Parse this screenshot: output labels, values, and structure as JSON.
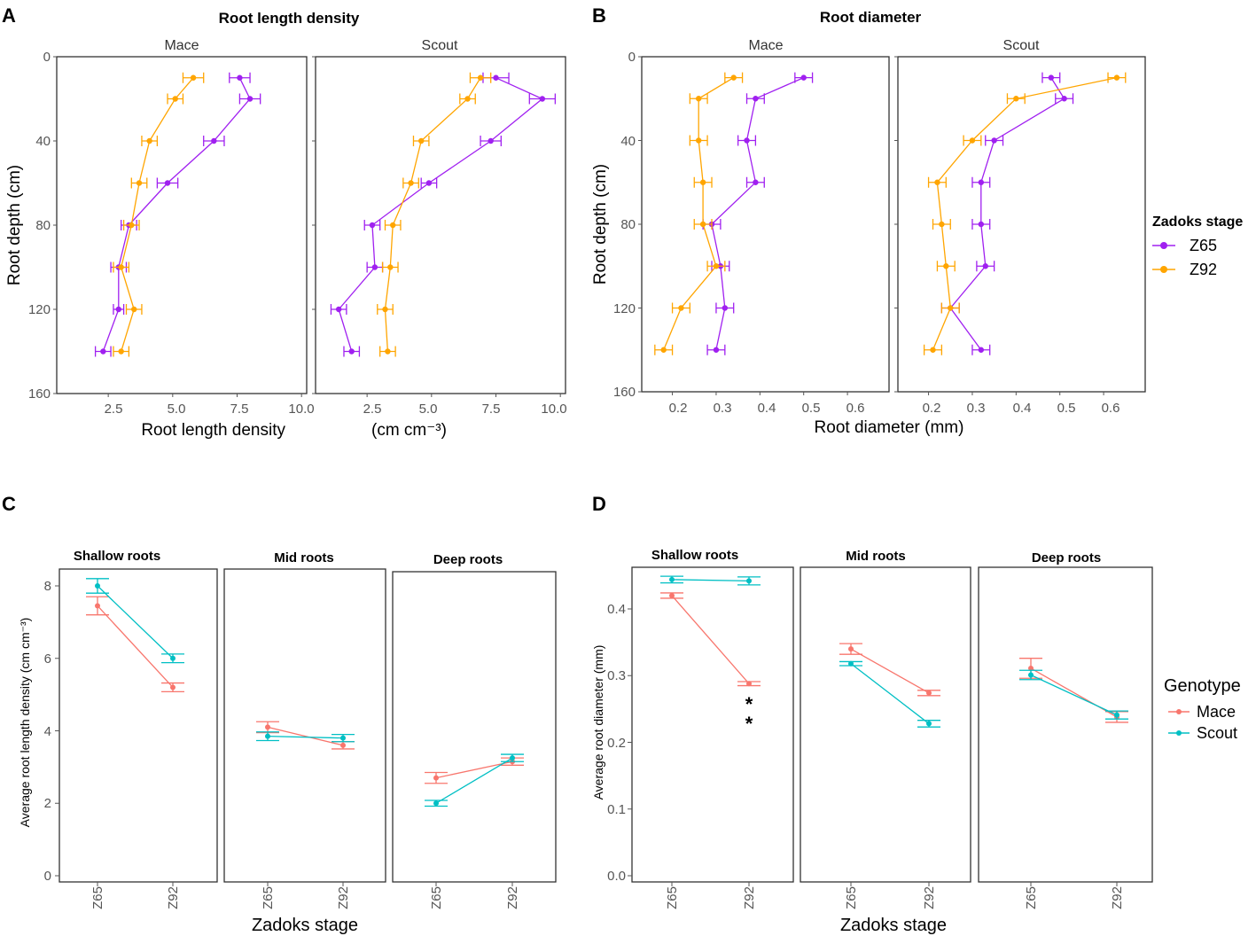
{
  "colors": {
    "z65": "#a020f0",
    "z92": "#ffa500",
    "mace": "#f8766d",
    "scout": "#00bfc4",
    "frame": "#333333"
  },
  "chart_data": [
    {
      "id": "A",
      "panel_label": "A",
      "type": "line",
      "title": "Root length density",
      "xlabel": "Root length density",
      "xlabel_unit": "(cm cm⁻³)",
      "ylabel": "Root depth (cm)",
      "xlim": [
        0.5,
        10.2
      ],
      "ylim": [
        0,
        160
      ],
      "y_reversed": true,
      "xticks": [
        2.5,
        5.0,
        7.5,
        10.0
      ],
      "xtick_labels": [
        "2.5",
        "5.0",
        "7.5",
        "10.0"
      ],
      "yticks": [
        0,
        40,
        80,
        120,
        160
      ],
      "ytick_labels": [
        "0",
        "40",
        "80",
        "120",
        "160"
      ],
      "depths": [
        10,
        20,
        40,
        60,
        80,
        100,
        120,
        140
      ],
      "facets": [
        {
          "name": "Mace",
          "series": [
            {
              "name": "Z65",
              "x": [
                7.6,
                8.0,
                6.6,
                4.8,
                3.3,
                2.9,
                2.9,
                2.3
              ],
              "err": [
                0.4,
                0.4,
                0.4,
                0.4,
                0.3,
                0.3,
                0.2,
                0.3
              ]
            },
            {
              "name": "Z92",
              "x": [
                5.8,
                5.1,
                4.1,
                3.7,
                3.4,
                3.0,
                3.5,
                3.0
              ],
              "err": [
                0.4,
                0.3,
                0.3,
                0.3,
                0.3,
                0.3,
                0.3,
                0.3
              ]
            }
          ]
        },
        {
          "name": "Scout",
          "series": [
            {
              "name": "Z65",
              "x": [
                7.5,
                9.3,
                7.3,
                4.9,
                2.7,
                2.8,
                1.4,
                1.9
              ],
              "err": [
                0.5,
                0.5,
                0.4,
                0.3,
                0.3,
                0.3,
                0.3,
                0.3
              ]
            },
            {
              "name": "Z92",
              "x": [
                6.9,
                6.4,
                4.6,
                4.2,
                3.5,
                3.4,
                3.2,
                3.3
              ],
              "err": [
                0.4,
                0.3,
                0.3,
                0.3,
                0.3,
                0.3,
                0.3,
                0.3
              ]
            }
          ]
        }
      ]
    },
    {
      "id": "B",
      "panel_label": "B",
      "type": "line",
      "title": "Root diameter",
      "xlabel": "Root diameter  (mm)",
      "ylabel": "Root depth (cm)",
      "xlim": [
        0.13,
        0.695
      ],
      "ylim": [
        0,
        160
      ],
      "y_reversed": true,
      "xticks": [
        0.2,
        0.3,
        0.4,
        0.5,
        0.6
      ],
      "xtick_labels": [
        "0.2",
        "0.3",
        "0.4",
        "0.5",
        "0.6"
      ],
      "yticks": [
        0,
        40,
        80,
        120,
        160
      ],
      "ytick_labels": [
        "0",
        "40",
        "80",
        "120",
        "160"
      ],
      "depths": [
        10,
        20,
        40,
        60,
        80,
        100,
        120,
        140
      ],
      "facets": [
        {
          "name": "Mace",
          "series": [
            {
              "name": "Z65",
              "x": [
                0.5,
                0.39,
                0.37,
                0.39,
                0.29,
                0.31,
                0.32,
                0.3
              ],
              "err": [
                0.02,
                0.02,
                0.02,
                0.02,
                0.02,
                0.02,
                0.02,
                0.02
              ]
            },
            {
              "name": "Z92",
              "x": [
                0.34,
                0.26,
                0.26,
                0.27,
                0.27,
                0.3,
                0.22,
                0.18
              ],
              "err": [
                0.02,
                0.02,
                0.02,
                0.02,
                0.02,
                0.02,
                0.02,
                0.02
              ]
            }
          ]
        },
        {
          "name": "Scout",
          "series": [
            {
              "name": "Z65",
              "x": [
                0.48,
                0.51,
                0.35,
                0.32,
                0.32,
                0.33,
                0.25,
                0.32
              ],
              "err": [
                0.02,
                0.02,
                0.02,
                0.02,
                0.02,
                0.02,
                0.02,
                0.02
              ]
            },
            {
              "name": "Z92",
              "x": [
                0.63,
                0.4,
                0.3,
                0.22,
                0.23,
                0.24,
                0.25,
                0.21
              ],
              "err": [
                0.02,
                0.02,
                0.02,
                0.02,
                0.02,
                0.02,
                0.02,
                0.02
              ]
            }
          ]
        }
      ],
      "legend": {
        "title": "Zadoks stage",
        "entries": [
          "Z65",
          "Z92"
        ],
        "placement": "right"
      }
    },
    {
      "id": "C",
      "panel_label": "C",
      "type": "line",
      "xlabel": "Zadoks stage",
      "ylabel": "Average root length density (cm cm⁻³)",
      "categories": [
        "Z65",
        "Z92"
      ],
      "ylim": [
        -0.3,
        8.45
      ],
      "yticks": [
        0,
        2,
        4,
        6,
        8
      ],
      "ytick_labels": [
        "0",
        "2",
        "4",
        "6",
        "8"
      ],
      "facets": [
        {
          "name": "Shallow roots",
          "series": [
            {
              "name": "Mace",
              "values": [
                7.45,
                5.2
              ],
              "err": [
                0.25,
                0.12
              ]
            },
            {
              "name": "Scout",
              "values": [
                8.0,
                6.0
              ],
              "err": [
                0.2,
                0.12
              ]
            }
          ]
        },
        {
          "name": "Mid roots",
          "series": [
            {
              "name": "Mace",
              "values": [
                4.1,
                3.6
              ],
              "err": [
                0.15,
                0.1
              ]
            },
            {
              "name": "Scout",
              "values": [
                3.85,
                3.8
              ],
              "err": [
                0.12,
                0.1
              ]
            }
          ]
        },
        {
          "name": "Deep roots",
          "series": [
            {
              "name": "Mace",
              "values": [
                2.7,
                3.15
              ],
              "err": [
                0.15,
                0.1
              ]
            },
            {
              "name": "Scout",
              "values": [
                2.0,
                3.25
              ],
              "err": [
                0.08,
                0.1
              ]
            }
          ]
        }
      ]
    },
    {
      "id": "D",
      "panel_label": "D",
      "type": "line",
      "xlabel": "Zadoks stage",
      "ylabel": "Average root diameter (mm)",
      "categories": [
        "Z65",
        "Z92"
      ],
      "ylim": [
        -0.008,
        0.46
      ],
      "yticks": [
        0.0,
        0.1,
        0.2,
        0.3,
        0.4
      ],
      "ytick_labels": [
        "0.0",
        "0.1",
        "0.2",
        "0.3",
        "0.4"
      ],
      "facets": [
        {
          "name": "Shallow roots",
          "series": [
            {
              "name": "Mace",
              "values": [
                0.42,
                0.288
              ],
              "err": [
                0.004,
                0.003
              ]
            },
            {
              "name": "Scout",
              "values": [
                0.444,
                0.442
              ],
              "err": [
                0.005,
                0.006
              ]
            }
          ],
          "annotation": {
            "text": "*",
            "category": "Z92",
            "value": 0.255
          }
        },
        {
          "name": "Mid roots",
          "series": [
            {
              "name": "Mace",
              "values": [
                0.34,
                0.274
              ],
              "err": [
                0.008,
                0.004
              ]
            },
            {
              "name": "Scout",
              "values": [
                0.318,
                0.228
              ],
              "err": [
                0.003,
                0.005
              ]
            }
          ]
        },
        {
          "name": "Deep roots",
          "series": [
            {
              "name": "Mace",
              "values": [
                0.311,
                0.238
              ],
              "err": [
                0.015,
                0.008
              ]
            },
            {
              "name": "Scout",
              "values": [
                0.301,
                0.241
              ],
              "err": [
                0.007,
                0.006
              ]
            }
          ]
        }
      ],
      "legend": {
        "title": "Genotype",
        "entries": [
          "Mace",
          "Scout"
        ],
        "placement": "right"
      }
    }
  ]
}
